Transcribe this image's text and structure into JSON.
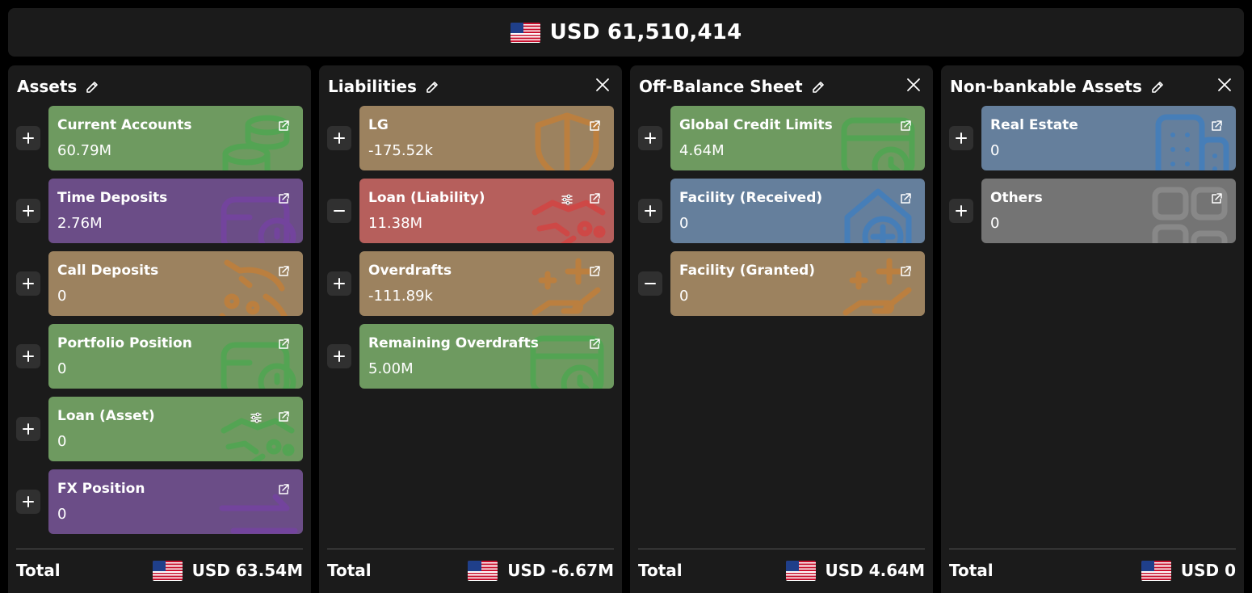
{
  "header": {
    "total": "USD 61,510,414",
    "flag_icon": "us-flag-icon"
  },
  "colors": {
    "green": "#6e9a60",
    "purple": "#6b4d87",
    "tan": "#9c825f",
    "red": "#b65f5c",
    "blue": "#657f9c",
    "gray": "#747474",
    "panel": "#1b1b1b",
    "background": "#000000"
  },
  "columns": [
    {
      "title": "Assets",
      "has_close": false,
      "total_label": "Total",
      "total_value": "USD 63.54M",
      "items": [
        {
          "label": "Current Accounts",
          "value": "60.79M",
          "color": "green",
          "sign": "plus",
          "icon": "coins-icon"
        },
        {
          "label": "Time Deposits",
          "value": "2.76M",
          "color": "purple",
          "sign": "plus",
          "icon": "wallet-clock-icon"
        },
        {
          "label": "Call Deposits",
          "value": "0",
          "color": "tan",
          "sign": "plus",
          "icon": "piggy-bank-icon"
        },
        {
          "label": "Portfolio Position",
          "value": "0",
          "color": "green",
          "sign": "plus",
          "icon": "wallet-clock-icon"
        },
        {
          "label": "Loan (Asset)",
          "value": "0",
          "color": "green",
          "sign": "plus",
          "icon": "handshake-icon",
          "settings": true
        },
        {
          "label": "FX Position",
          "value": "0",
          "color": "purple",
          "sign": "plus",
          "icon": "exchange-arrows-icon"
        }
      ]
    },
    {
      "title": "Liabilities",
      "has_close": true,
      "total_label": "Total",
      "total_value": "USD -6.67M",
      "items": [
        {
          "label": "LG",
          "value": "-175.52k",
          "color": "tan",
          "sign": "plus",
          "icon": "shield-icon"
        },
        {
          "label": "Loan (Liability)",
          "value": "11.38M",
          "color": "red",
          "sign": "minus",
          "icon": "handshake-icon",
          "settings": true
        },
        {
          "label": "Overdrafts",
          "value": "-111.89k",
          "color": "tan",
          "sign": "plus",
          "icon": "hand-plus-icon"
        },
        {
          "label": "Remaining Overdrafts",
          "value": "5.00M",
          "color": "green",
          "sign": "plus",
          "icon": "card-clock-icon"
        }
      ]
    },
    {
      "title": "Off-Balance Sheet",
      "has_close": true,
      "total_label": "Total",
      "total_value": "USD 4.64M",
      "items": [
        {
          "label": "Global Credit Limits",
          "value": "4.64M",
          "color": "green",
          "sign": "plus",
          "icon": "card-clock-icon"
        },
        {
          "label": "Facility (Received)",
          "value": "0",
          "color": "blue",
          "sign": "plus",
          "icon": "house-plus-icon"
        },
        {
          "label": "Facility (Granted)",
          "value": "0",
          "color": "tan",
          "sign": "minus",
          "icon": "hand-plus-icon"
        }
      ]
    },
    {
      "title": "Non-bankable Assets",
      "has_close": true,
      "total_label": "Total",
      "total_value": "USD 0",
      "items": [
        {
          "label": "Real Estate",
          "value": "0",
          "color": "blue",
          "sign": "plus",
          "icon": "buildings-icon"
        },
        {
          "label": "Others",
          "value": "0",
          "color": "gray",
          "sign": "plus",
          "icon": "grid-blocks-icon"
        }
      ]
    }
  ]
}
